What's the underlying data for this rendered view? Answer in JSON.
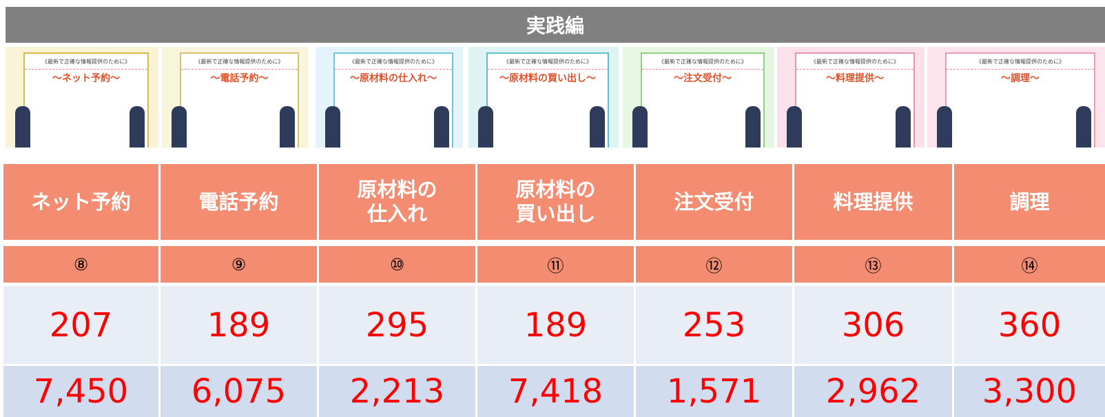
{
  "header": {
    "title": "実践編"
  },
  "thumbnails": [
    {
      "heading": "《最新で正確な情報提供のために》",
      "title": "〜ネット予約〜",
      "bg": "#fbf3d6",
      "border": "#d9b84a"
    },
    {
      "heading": "《最新で正確な情報提供のために》",
      "title": "〜電話予約〜",
      "bg": "#f7f5dc",
      "border": "#d9c36a"
    },
    {
      "heading": "《最新で正確な情報提供のために》",
      "title": "〜原材料の仕入れ〜",
      "bg": "#e3f4fa",
      "border": "#6fc3dc"
    },
    {
      "heading": "《最新で正確な情報提供のために》",
      "title": "〜原材料の買い出し〜",
      "bg": "#dff3f5",
      "border": "#5fbfc9"
    },
    {
      "heading": "《最新で正確な情報提供のために》",
      "title": "〜注文受付〜",
      "bg": "#e6f6e3",
      "border": "#8fd07f"
    },
    {
      "heading": "《最新で正確な情報提供のために》",
      "title": "〜料理提供〜",
      "bg": "#fbe1ea",
      "border": "#ec8fb0"
    },
    {
      "heading": "《最新で正確な情報提供のために》",
      "title": "〜調理〜",
      "bg": "#fce4ec",
      "border": "#ef9ab5"
    }
  ],
  "table": {
    "rows": [
      [
        "ネット予約",
        "電話予約",
        "原材料の\n仕入れ",
        "原材料の\n買い出し",
        "注文受付",
        "料理提供",
        "調理"
      ],
      [
        "⑧",
        "⑨",
        "⑩",
        "⑪",
        "⑫",
        "⑬",
        "⑭"
      ],
      [
        "207",
        "189",
        "295",
        "189",
        "253",
        "306",
        "360"
      ],
      [
        "7,450",
        "6,075",
        "2,213",
        "7,418",
        "1,571",
        "2,962",
        "3,300"
      ]
    ]
  }
}
